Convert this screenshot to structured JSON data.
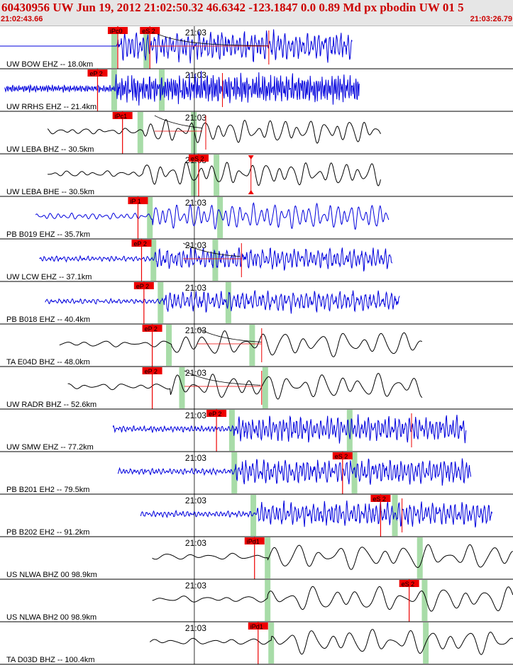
{
  "header": {
    "title": "60430956 UW Jun 19, 2012 21:02:50.32   46.6342 -123.1847  0.0 0.89 Md px pbodin UW 01   5",
    "start_time": "21:02:43.66",
    "end_time": "21:03:26.79"
  },
  "chart_data": {
    "type": "line",
    "title": "60430956 UW Jun 19, 2012 21:02:50.32   46.6342 -123.1847  0.0 0.89 Md px pbodin UW 01   5",
    "x_start": "21:02:43.66",
    "x_end": "21:03:26.79",
    "x_range_s": [
      0,
      43.13
    ],
    "minute_tick": {
      "label": "21:03",
      "t_s": 16.34
    },
    "colors": {
      "blue": "#0000dd",
      "black": "#000000",
      "pick": "#ee0000",
      "window": "#a8dca8"
    },
    "traces": [
      {
        "label": "UW BOW EHZ -- 18.0km",
        "color": "blue",
        "t0": 0.0,
        "t1": 29.6,
        "gap_until": 9.8,
        "amp": 0.5,
        "freq": 3.2,
        "onset": 9.9,
        "picks": [
          {
            "label": "iPc0",
            "t": 9.9
          },
          {
            "label": "eS 2",
            "t": 12.6
          }
        ],
        "windows": [
          9.6,
          12.3
        ],
        "marker": 22.6,
        "coda": [
          12.6,
          22.6
        ]
      },
      {
        "label": "UW RRHS EHZ -- 21.4km",
        "color": "blue",
        "t0": 0.4,
        "t1": 30.2,
        "amp": 0.5,
        "freq": 6.0,
        "onset": 9.7,
        "picks": [
          {
            "label": "eP 2",
            "t": 8.2
          }
        ],
        "windows": [
          9.6,
          13.6
        ],
        "marker": 18.7
      },
      {
        "label": "UW LEBA BHZ -- 30.5km",
        "color": "black",
        "t0": 4.0,
        "t1": 32.0,
        "amp": 0.42,
        "freq": 0.9,
        "onset": 12.0,
        "picks": [
          {
            "label": "iPc1",
            "t": 10.3
          }
        ],
        "windows": [
          11.8,
          16.3
        ],
        "marker": 17.3,
        "coda": [
          13.0,
          17.0
        ]
      },
      {
        "label": "UW LEBA BHE -- 30.5km",
        "color": "black",
        "t0": 4.0,
        "t1": 32.0,
        "amp": 0.42,
        "freq": 0.9,
        "onset": 12.0,
        "picks": [
          {
            "label": "eS 2",
            "t": 16.7
          }
        ],
        "windows": [
          16.3,
          18.2
        ],
        "marker": 21.1,
        "triangle": 21.1
      },
      {
        "label": "PB B019 EHZ -- 35.7km",
        "color": "blue",
        "t0": 3.0,
        "t1": 32.7,
        "amp": 0.45,
        "freq": 1.7,
        "onset": 12.8,
        "picks": [
          {
            "label": "iP 1",
            "t": 11.6
          }
        ],
        "windows": [
          12.6,
          18.5
        ]
      },
      {
        "label": "UW LCW EHZ -- 37.1km",
        "color": "blue",
        "t0": 3.3,
        "t1": 33.0,
        "amp": 0.36,
        "freq": 3.0,
        "onset": 13.0,
        "picks": [
          {
            "label": "eP 2",
            "t": 11.9
          }
        ],
        "windows": [
          12.9,
          18.1
        ],
        "marker": 20.3,
        "coda": [
          15.4,
          20.3
        ]
      },
      {
        "label": "PB B018 EHZ -- 40.4km",
        "color": "blue",
        "t0": 3.8,
        "t1": 33.6,
        "amp": 0.35,
        "freq": 2.8,
        "onset": 13.6,
        "picks": [
          {
            "label": "eP 2",
            "t": 12.1
          }
        ],
        "windows": [
          13.5,
          19.2
        ]
      },
      {
        "label": "TA E04D BHZ -- 48.0km",
        "color": "black",
        "t0": 5.0,
        "t1": 35.5,
        "amp": 0.45,
        "freq": 0.6,
        "onset": 14.4,
        "picks": [
          {
            "label": "eP 2",
            "t": 12.8
          }
        ],
        "windows": [
          14.2,
          21.2
        ],
        "marker": 22.0,
        "coda": [
          16.6,
          22.0
        ]
      },
      {
        "label": "UW RADR BHZ -- 52.6km",
        "color": "black",
        "t0": 5.7,
        "t1": 35.5,
        "amp": 0.45,
        "freq": 0.65,
        "onset": 14.3,
        "picks": [
          {
            "label": "eP 2",
            "t": 12.8
          }
        ],
        "windows": [
          15.3,
          22.3
        ],
        "marker": 22.0,
        "coda": [
          15.5,
          22.0
        ]
      },
      {
        "label": "UW SMW EHZ -- 77.2km",
        "color": "blue",
        "t0": 9.5,
        "t1": 39.2,
        "amp": 0.42,
        "freq": 3.5,
        "onset": 19.6,
        "picks": [
          {
            "label": "eP 2",
            "t": 18.2
          }
        ],
        "windows": [
          19.5,
          29.4
        ],
        "marker": 34.6
      },
      {
        "label": "PB B201 EH2 -- 79.5km",
        "color": "blue",
        "t0": 9.9,
        "t1": 39.6,
        "amp": 0.42,
        "freq": 3.3,
        "onset": 19.8,
        "picks": [
          {
            "label": "eS 2",
            "t": 28.8
          }
        ],
        "windows": [
          19.7,
          29.8
        ]
      },
      {
        "label": "PB B202 EH2 -- 91.2km",
        "color": "blue",
        "t0": 11.8,
        "t1": 41.4,
        "amp": 0.4,
        "freq": 3.2,
        "onset": 21.6,
        "picks": [
          {
            "label": "eS 2",
            "t": 32.0
          }
        ],
        "windows": [
          21.3,
          33.2
        ],
        "marker": 33.8
      },
      {
        "label": "US NLWA BHZ 00 98.9km",
        "color": "black",
        "t0": 12.8,
        "t1": 43.13,
        "amp": 0.45,
        "freq": 0.55,
        "onset": 22.5,
        "picks": [
          {
            "label": "iPd1",
            "t": 21.4
          }
        ],
        "windows": [
          22.5,
          35.3
        ]
      },
      {
        "label": "US NLWA BH2 00 98.9km",
        "color": "black",
        "t0": 12.8,
        "t1": 43.13,
        "amp": 0.45,
        "freq": 0.55,
        "onset": 22.5,
        "picks": [
          {
            "label": "eS 2",
            "t": 34.4
          }
        ],
        "windows": [
          22.5,
          35.7
        ]
      },
      {
        "label": "TA D03D BHZ -- 100.4km",
        "color": "black",
        "t0": 12.6,
        "t1": 43.13,
        "amp": 0.45,
        "freq": 0.6,
        "onset": 22.8,
        "picks": [
          {
            "label": "iPd1",
            "t": 21.7
          }
        ],
        "windows": [
          22.8,
          35.8
        ]
      }
    ]
  }
}
